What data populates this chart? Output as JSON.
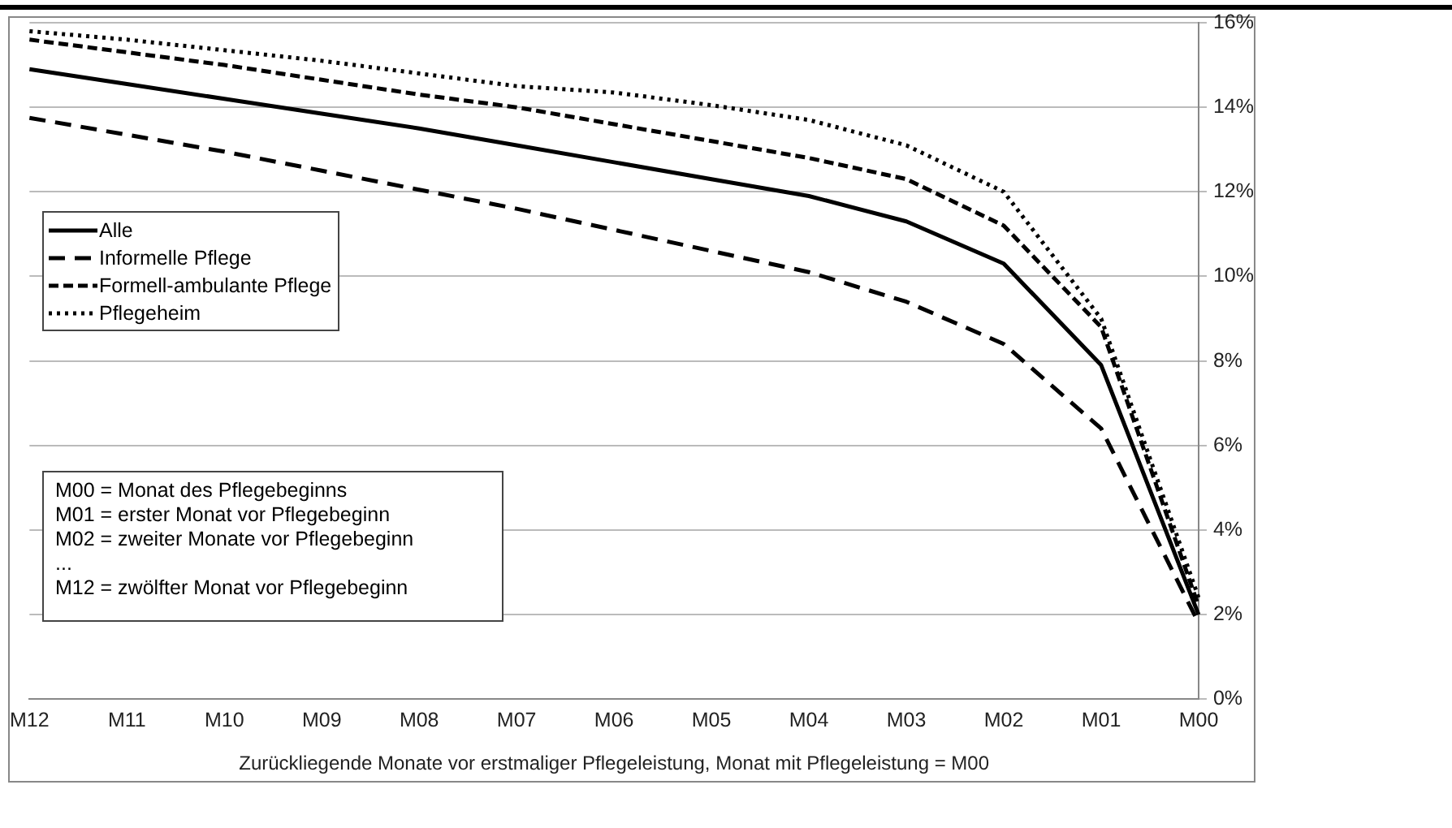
{
  "chart_data": {
    "type": "line",
    "xlabel": "Zurückliegende Monate vor erstmaliger Pflegeleistung, Monat mit Pflegeleistung = M00",
    "categories": [
      "M12",
      "M11",
      "M10",
      "M09",
      "M08",
      "M07",
      "M06",
      "M05",
      "M04",
      "M03",
      "M02",
      "M01",
      "M00"
    ],
    "series": [
      {
        "name": "Alle",
        "color": "#000000",
        "line_style": "solid",
        "values": [
          14.9,
          14.55,
          14.2,
          13.85,
          13.5,
          13.1,
          12.7,
          12.3,
          11.9,
          11.3,
          10.3,
          7.9,
          2.0
        ]
      },
      {
        "name": "Informelle Pflege",
        "color": "#000000",
        "line_style": "dashed",
        "values": [
          13.75,
          13.35,
          12.95,
          12.5,
          12.05,
          11.6,
          11.1,
          10.6,
          10.1,
          9.4,
          8.4,
          6.4,
          1.8
        ]
      },
      {
        "name": "Formell-ambulante Pflege",
        "color": "#000000",
        "line_style": "dashed",
        "values": [
          15.6,
          15.3,
          15.0,
          14.65,
          14.3,
          14.0,
          13.6,
          13.2,
          12.8,
          12.3,
          11.2,
          8.8,
          2.2
        ]
      },
      {
        "name": "Pflegeheim",
        "color": "#000000",
        "line_style": "dotted",
        "values": [
          15.8,
          15.6,
          15.35,
          15.1,
          14.8,
          14.5,
          14.35,
          14.05,
          13.7,
          13.1,
          12.0,
          9.0,
          2.4
        ]
      }
    ],
    "ylim": [
      0,
      16
    ],
    "yticks": [
      {
        "value": 0,
        "label": "0%"
      },
      {
        "value": 2,
        "label": "2%"
      },
      {
        "value": 4,
        "label": "4%"
      },
      {
        "value": 6,
        "label": "6%"
      },
      {
        "value": 8,
        "label": "8%"
      },
      {
        "value": 10,
        "label": "10%"
      },
      {
        "value": 12,
        "label": "12%"
      },
      {
        "value": 14,
        "label": "14%"
      },
      {
        "value": 16,
        "label": "16%"
      }
    ],
    "grid": "y",
    "legend": "left",
    "marker": "none",
    "annotations": [
      "M00 = Monat des Pflegebeginns\nM01 = erster Monat vor Pflegebeginn\nM02 = zweiter Monate vor Pflegebeginn\n...\nM12 = zwölfter Monat vor Pflegebeginn"
    ]
  }
}
